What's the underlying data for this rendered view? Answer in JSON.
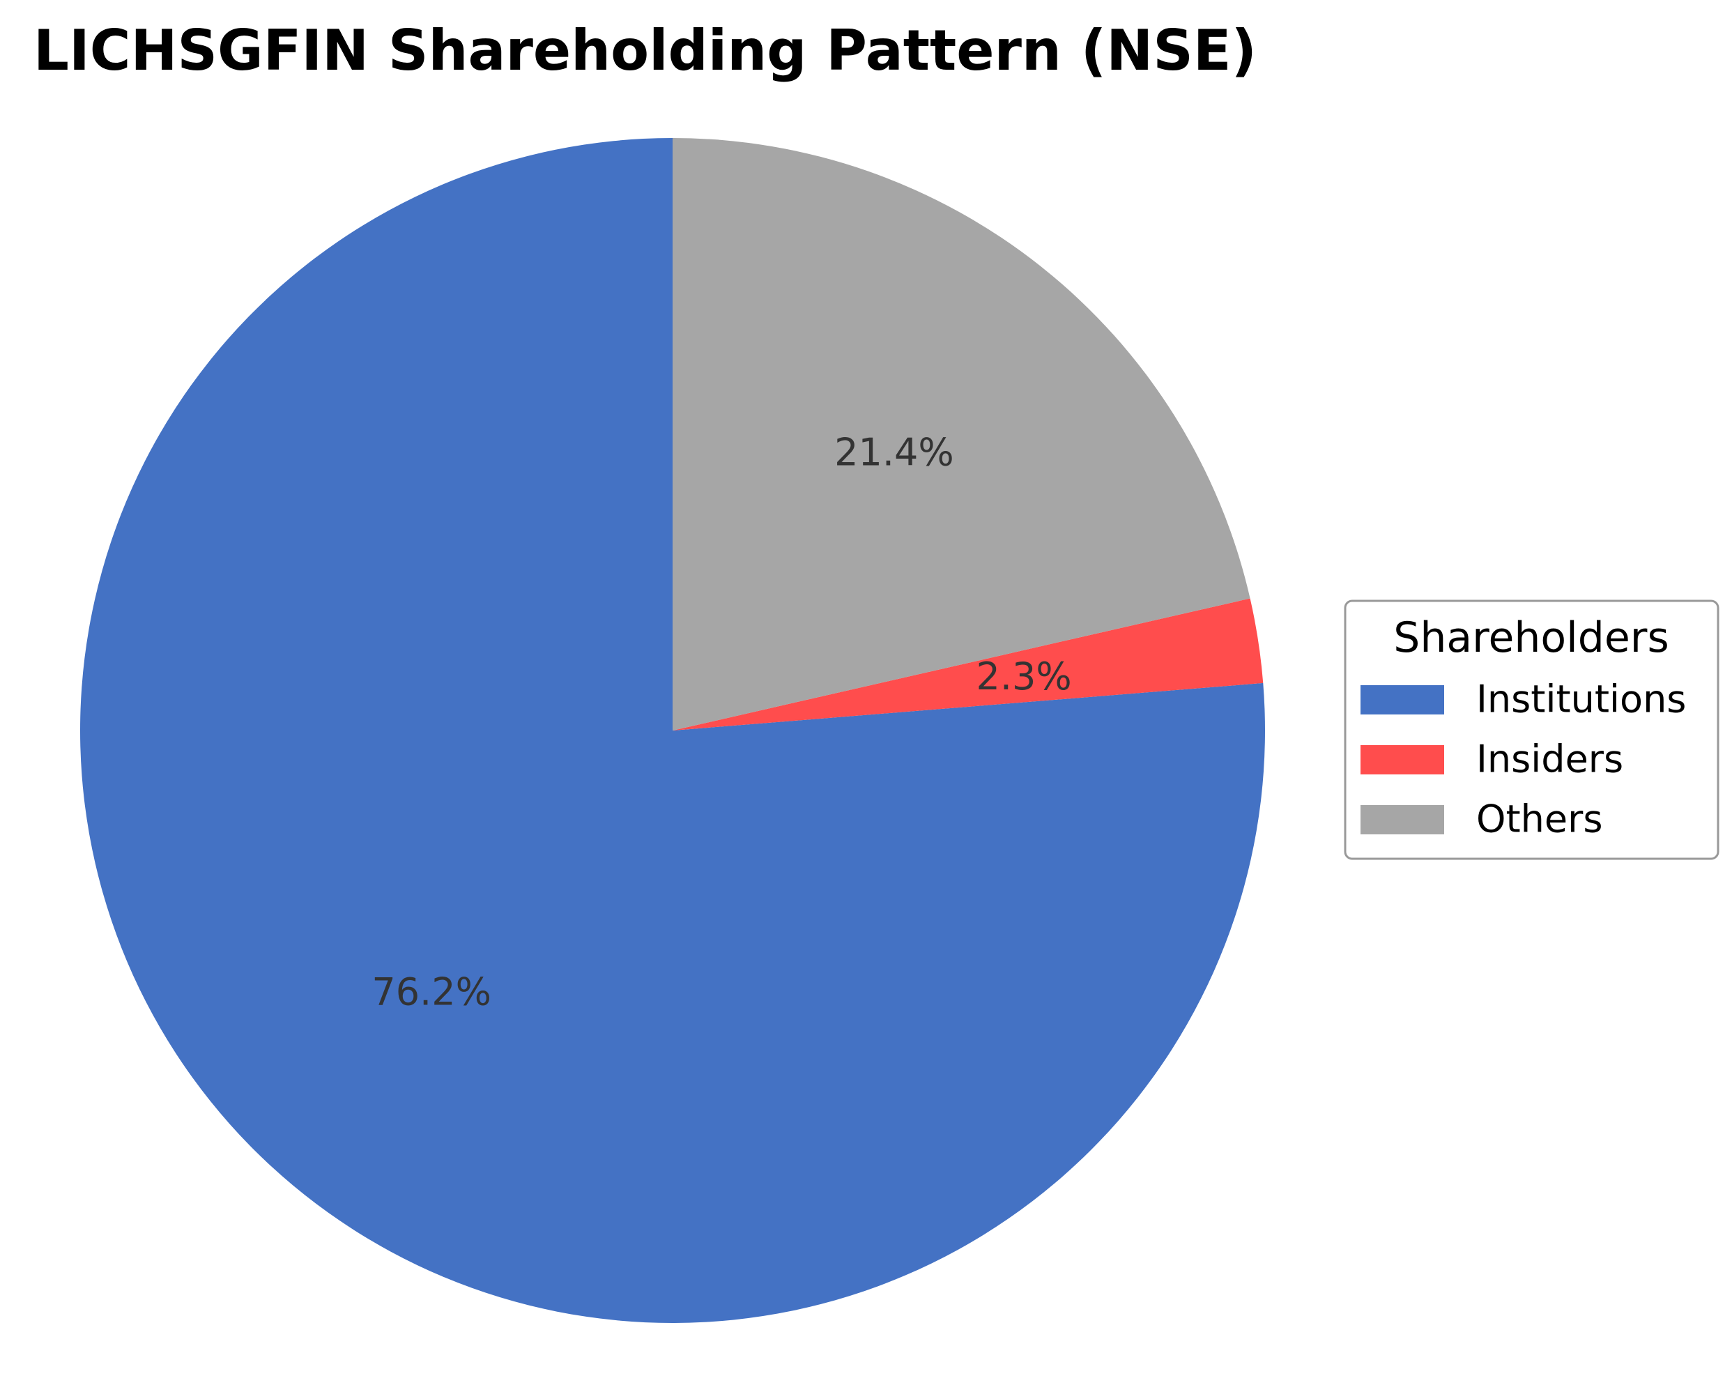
{
  "chart_data": {
    "type": "pie",
    "title": "LICHSGFIN Shareholding Pattern (NSE)",
    "legend_title": "Shareholders",
    "legend_position": "right",
    "start_angle_deg": 90,
    "direction": "counterclockwise",
    "slices": [
      {
        "label": "Institutions",
        "value": 76.2,
        "pct_label": "76.2%",
        "color": "#4472C4"
      },
      {
        "label": "Insiders",
        "value": 2.3,
        "pct_label": "2.3%",
        "color": "#FF4D4D"
      },
      {
        "label": "Others",
        "value": 21.4,
        "pct_label": "21.4%",
        "color": "#A6A6A6"
      }
    ]
  }
}
